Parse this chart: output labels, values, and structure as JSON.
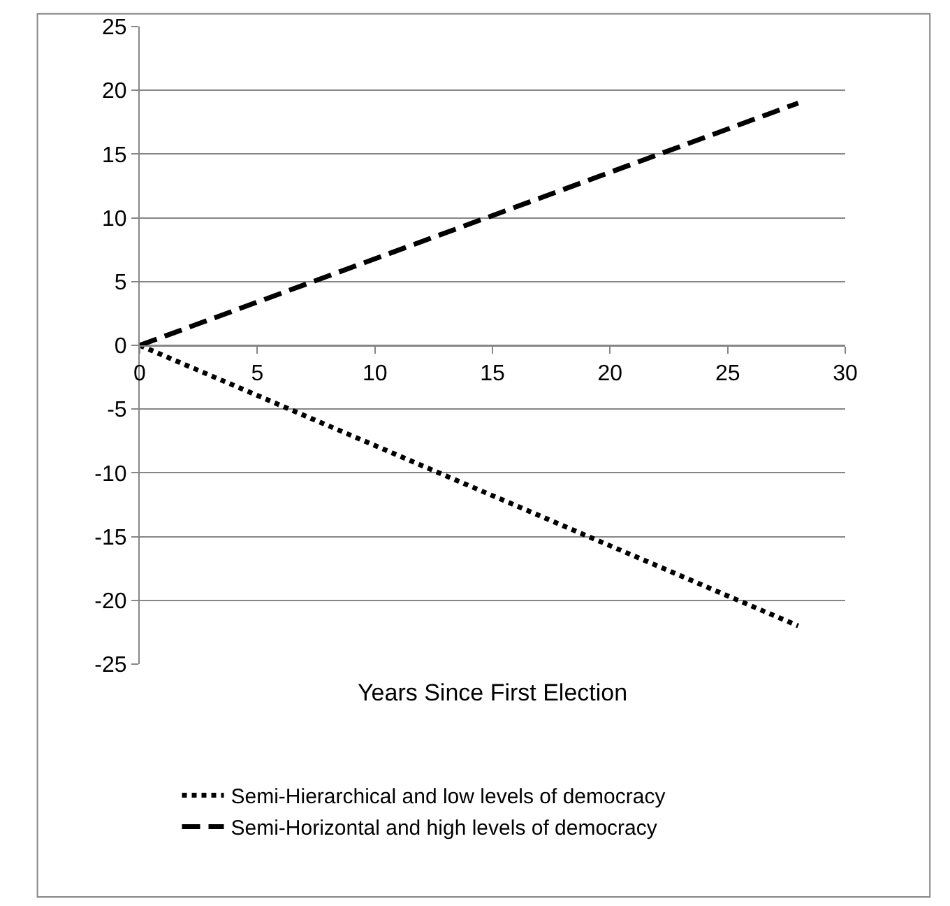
{
  "chart_data": {
    "type": "line",
    "xlabel": "Years Since First Election",
    "x": [
      0,
      28
    ],
    "series": [
      {
        "name": "Semi-Hierarchical and low levels of democracy",
        "color": "#000000",
        "values": [
          0,
          -22
        ],
        "line_style": "dotted"
      },
      {
        "name": "Semi-Horizontal and high levels of democracy",
        "color": "#000000",
        "values": [
          0,
          19
        ],
        "line_style": "dashed"
      }
    ],
    "xlim": [
      0,
      30
    ],
    "xticks": [
      0,
      5,
      10,
      15,
      20,
      25,
      30
    ],
    "ylim": [
      -25,
      25
    ],
    "yticks": [
      -25,
      -20,
      -15,
      -10,
      -5,
      0,
      5,
      10,
      15,
      20,
      25
    ],
    "grid": "y",
    "legend": "bottom",
    "marker": "none"
  }
}
